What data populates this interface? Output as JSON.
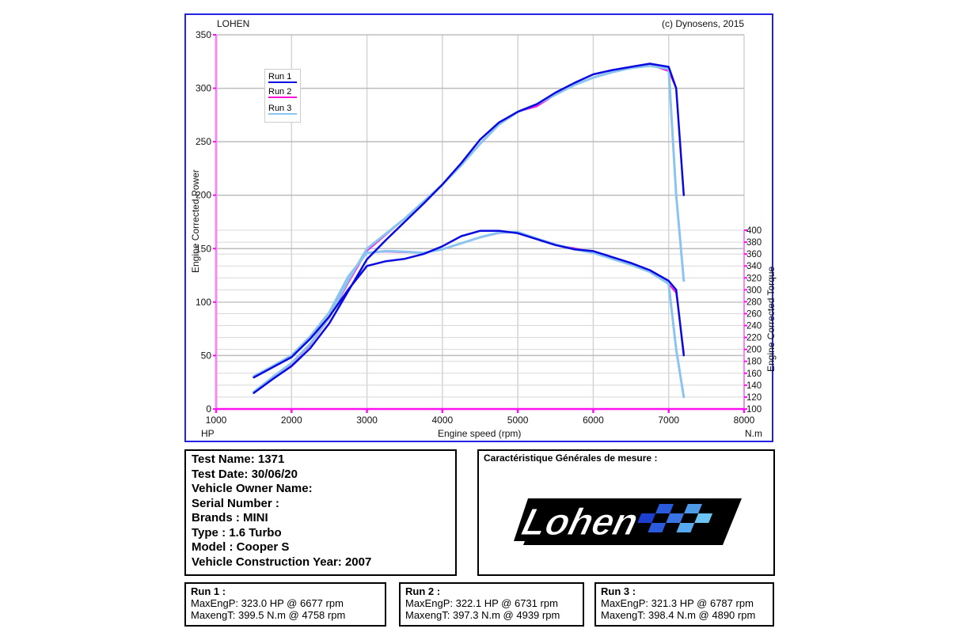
{
  "header": {
    "left_title": "LOHEN",
    "copyright": "(c) Dynosens, 2015"
  },
  "axes": {
    "x_label": "Engine speed (rpm)",
    "left_unit": "HP",
    "right_unit": "N.m",
    "left_label": "Engine Corrected Power",
    "right_label": "Engine Corrected Torque",
    "x_ticks": [
      "1000",
      "2000",
      "3000",
      "4000",
      "5000",
      "6000",
      "7000",
      "8000"
    ],
    "y_left_ticks": [
      "0",
      "50",
      "100",
      "150",
      "200",
      "250",
      "300",
      "350"
    ],
    "y_right_ticks": [
      "100",
      "120",
      "140",
      "160",
      "180",
      "200",
      "220",
      "240",
      "260",
      "280",
      "300",
      "320",
      "340",
      "360",
      "380",
      "400"
    ]
  },
  "legend": [
    {
      "label": "Run 1",
      "color": "#0a0ae0"
    },
    {
      "label": "Run 2",
      "color": "#ff10d8"
    },
    {
      "label": "Run 3",
      "color": "#8cc4f0"
    }
  ],
  "test_info": {
    "test_name": "Test Name: 1371",
    "test_date": "Test Date: 30/06/20",
    "owner": "Vehicle Owner Name:",
    "serial": "Serial Number  :",
    "brand": "Brands  : MINI",
    "type": "Type  : 1.6 Turbo",
    "model": "Model  : Cooper S",
    "year": "Vehicle Construction Year: 2007"
  },
  "general": {
    "title": "Caractéristique Générales de mesure :",
    "logo_text": "Lohen"
  },
  "runs": [
    {
      "title": "Run 1  :",
      "power": "MaxEngP: 323.0 HP @ 6677 rpm",
      "torque": "MaxengT: 399.5 N.m @ 4758 rpm"
    },
    {
      "title": "Run 2  :",
      "power": "MaxEngP: 322.1 HP @ 6731 rpm",
      "torque": "MaxengT: 397.3 N.m @ 4939 rpm"
    },
    {
      "title": "Run 3  :",
      "power": "MaxEngP: 321.3 HP @ 6787 rpm",
      "torque": "MaxengT: 398.4 N.m @ 4890 rpm"
    }
  ],
  "chart_data": {
    "type": "line",
    "title": "LOHEN",
    "xlabel": "Engine speed (rpm)",
    "ylabel": "Engine Corrected Power (HP)",
    "y2label": "Engine Corrected Torque (N.m)",
    "xlim": [
      1000,
      8000
    ],
    "ylim": [
      0,
      350
    ],
    "y2lim": [
      100,
      400
    ],
    "grid": true,
    "legend_position": "upper-left",
    "x": [
      1500,
      1750,
      2000,
      2250,
      2500,
      2750,
      3000,
      3250,
      3500,
      3750,
      4000,
      4250,
      4500,
      4750,
      5000,
      5250,
      5500,
      5750,
      6000,
      6250,
      6500,
      6750,
      7000,
      7100,
      7200
    ],
    "series": [
      {
        "name": "Run 1 Power (HP)",
        "axis": "left",
        "color": "#0a0ae0",
        "values": [
          15,
          28,
          40,
          57,
          80,
          110,
          140,
          158,
          175,
          192,
          210,
          230,
          252,
          268,
          278,
          285,
          296,
          305,
          313,
          317,
          320,
          323,
          320,
          300,
          200
        ]
      },
      {
        "name": "Run 2 Power (HP)",
        "axis": "left",
        "color": "#ff10d8",
        "values": [
          16,
          30,
          42,
          60,
          85,
          118,
          148,
          163,
          178,
          194,
          210,
          228,
          248,
          266,
          278,
          283,
          294,
          303,
          310,
          315,
          319,
          322,
          316,
          300,
          200
        ]
      },
      {
        "name": "Run 3 Power (HP)",
        "axis": "left",
        "color": "#8cc4f0",
        "values": [
          16,
          30,
          43,
          61,
          86,
          120,
          150,
          164,
          178,
          194,
          210,
          228,
          248,
          266,
          278,
          285,
          294,
          303,
          310,
          315,
          319,
          321,
          318,
          200,
          120
        ]
      },
      {
        "name": "Run 1 Torque (N.m)",
        "axis": "right",
        "color": "#0a0ae0",
        "values": [
          153,
          170,
          187,
          218,
          255,
          300,
          340,
          348,
          352,
          360,
          373,
          390,
          399,
          399,
          395,
          385,
          375,
          368,
          365,
          355,
          345,
          333,
          315,
          300,
          190
        ]
      },
      {
        "name": "Run 2 Torque (N.m)",
        "axis": "right",
        "color": "#ff10d8",
        "values": [
          155,
          172,
          190,
          222,
          262,
          320,
          362,
          364,
          363,
          362,
          368,
          378,
          388,
          395,
          397,
          385,
          375,
          370,
          362,
          352,
          342,
          330,
          310,
          295,
          195
        ]
      },
      {
        "name": "Run 3 Torque (N.m)",
        "axis": "right",
        "color": "#8cc4f0",
        "values": [
          155,
          172,
          190,
          222,
          262,
          322,
          362,
          365,
          364,
          362,
          368,
          378,
          388,
          396,
          397,
          386,
          376,
          368,
          362,
          352,
          342,
          330,
          310,
          200,
          120
        ]
      }
    ],
    "annotations": [
      "Run 1: MaxEngP 323.0 HP @ 6677 rpm, MaxengT 399.5 N.m @ 4758 rpm",
      "Run 2: MaxEngP 322.1 HP @ 6731 rpm, MaxengT 397.3 N.m @ 4939 rpm",
      "Run 3: MaxEngP 321.3 HP @ 6787 rpm, MaxengT 398.4 N.m @ 4890 rpm"
    ]
  }
}
